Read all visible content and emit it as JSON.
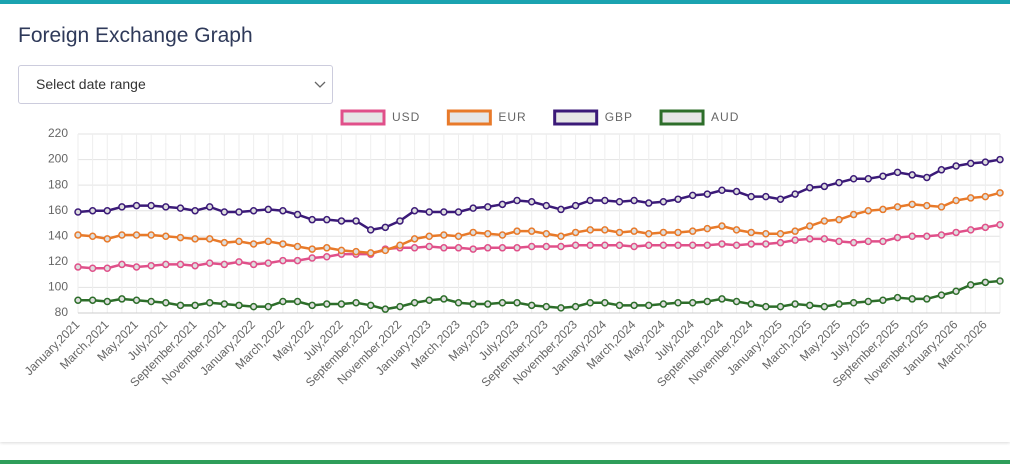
{
  "header": {
    "title": "Foreign Exchange Graph"
  },
  "date_select": {
    "placeholder": "Select date range"
  },
  "chart_data": {
    "type": "line",
    "categories": [
      "January,2021",
      null,
      "March,2021",
      null,
      "May,2021",
      null,
      "July,2021",
      null,
      "September,2021",
      null,
      "November,2021",
      null,
      "January,2022",
      null,
      "March,2022",
      null,
      "May,2022",
      null,
      "July,2022",
      null,
      "September,2022",
      null,
      "November,2022",
      null,
      "January,2023",
      null,
      "March,2023",
      null,
      "May,2023",
      null,
      "July,2023",
      null,
      "September,2023",
      null,
      "November,2023",
      null,
      "January,2024",
      null,
      "March,2024",
      null,
      "May,2024",
      null,
      "July,2024",
      null,
      "September,2024",
      null,
      "November,2024",
      null,
      "January,2025",
      null,
      "March,2025",
      null,
      "May,2025",
      null,
      "July,2025",
      null,
      "September,2025",
      null,
      "November,2025",
      null,
      "January,2026",
      null,
      "March,2026",
      null
    ],
    "series": [
      {
        "name": "USD",
        "color": "#e0508a",
        "values": [
          116,
          115,
          115,
          118,
          116,
          117,
          118,
          118,
          117,
          119,
          118,
          120,
          118,
          119,
          121,
          121,
          123,
          124,
          126,
          126,
          126,
          130,
          131,
          131,
          132,
          131,
          131,
          130,
          131,
          131,
          131,
          132,
          132,
          132,
          133,
          133,
          133,
          133,
          132,
          133,
          133,
          133,
          133,
          133,
          134,
          133,
          134,
          134,
          135,
          137,
          138,
          138,
          136,
          135,
          136,
          136,
          139,
          140,
          140,
          141,
          143,
          145,
          147,
          149
        ]
      },
      {
        "name": "EUR",
        "color": "#e87a2a",
        "values": [
          141,
          140,
          138,
          141,
          141,
          141,
          140,
          139,
          138,
          138,
          135,
          136,
          134,
          136,
          134,
          132,
          130,
          131,
          129,
          128,
          127,
          129,
          133,
          138,
          140,
          141,
          140,
          143,
          142,
          141,
          144,
          144,
          142,
          140,
          143,
          145,
          145,
          143,
          144,
          142,
          143,
          143,
          144,
          146,
          148,
          145,
          143,
          142,
          142,
          144,
          148,
          152,
          153,
          157,
          160,
          161,
          163,
          165,
          164,
          163,
          168,
          170,
          171,
          174
        ]
      },
      {
        "name": "GBP",
        "color": "#3b1a78",
        "values": [
          159,
          160,
          160,
          163,
          164,
          164,
          163,
          162,
          160,
          163,
          159,
          159,
          160,
          161,
          160,
          157,
          153,
          153,
          152,
          152,
          145,
          147,
          152,
          160,
          159,
          159,
          159,
          162,
          163,
          165,
          168,
          167,
          164,
          161,
          164,
          168,
          168,
          167,
          168,
          166,
          167,
          169,
          172,
          173,
          176,
          175,
          171,
          171,
          169,
          173,
          178,
          179,
          182,
          185,
          185,
          187,
          190,
          188,
          186,
          192,
          195,
          197,
          198,
          200
        ]
      },
      {
        "name": "AUD",
        "color": "#2d6e2a",
        "values": [
          90,
          90,
          89,
          91,
          90,
          89,
          88,
          86,
          86,
          88,
          87,
          86,
          85,
          85,
          89,
          89,
          86,
          87,
          87,
          88,
          86,
          83,
          85,
          88,
          90,
          91,
          88,
          87,
          87,
          88,
          88,
          86,
          85,
          84,
          85,
          88,
          88,
          86,
          86,
          86,
          87,
          88,
          88,
          89,
          91,
          89,
          87,
          85,
          85,
          87,
          86,
          85,
          87,
          88,
          89,
          90,
          92,
          91,
          91,
          94,
          97,
          102,
          104,
          105
        ]
      }
    ],
    "ylim": [
      80,
      220
    ],
    "yticks": [
      80,
      100,
      120,
      140,
      160,
      180,
      200,
      220
    ],
    "grid": true,
    "legend": "top"
  }
}
